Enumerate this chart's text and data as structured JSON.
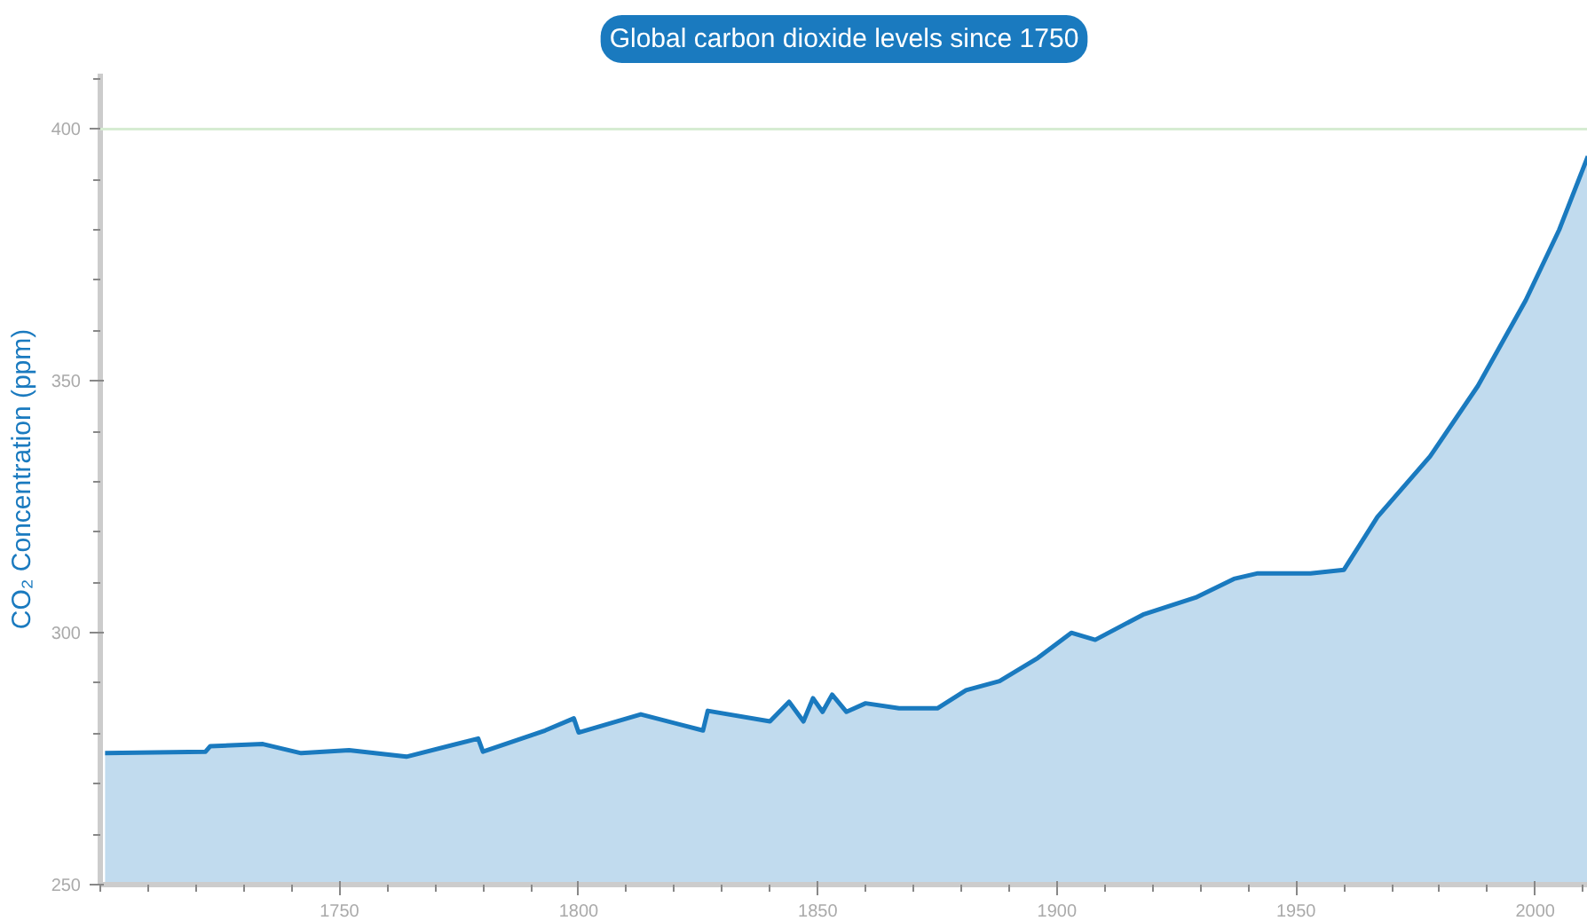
{
  "chart_data": {
    "type": "area",
    "title": "Global carbon dioxide levels since 1750",
    "ylabel": "CO₂ Concentration (ppm)",
    "x": [
      1701,
      1722,
      1723,
      1734,
      1742,
      1752,
      1764,
      1779,
      1780,
      1793,
      1799,
      1800,
      1813,
      1826,
      1827,
      1840,
      1844,
      1847,
      1849,
      1851,
      1853,
      1856,
      1860,
      1867,
      1875,
      1881,
      1888,
      1896,
      1903,
      1908,
      1918,
      1929,
      1937,
      1942,
      1953,
      1960,
      1967,
      1978,
      1988,
      1998,
      2005,
      2011
    ],
    "series": [
      {
        "color": "#1a7abf",
        "values": [
          276.1,
          276.4,
          277.5,
          277.9,
          276.1,
          276.7,
          275.4,
          279,
          276.4,
          280.6,
          283,
          280.2,
          283.8,
          280.6,
          284.5,
          282.4,
          286.3,
          282.4,
          287,
          284.3,
          287.7,
          284.3,
          286,
          285,
          285,
          288.6,
          290.4,
          295,
          300,
          298.6,
          303.6,
          307,
          310.7,
          311.8,
          311.8,
          312.5,
          323,
          335,
          349,
          366,
          380,
          394.6
        ]
      }
    ],
    "xlim": [
      1700,
      2011
    ],
    "ylim": [
      250,
      411
    ],
    "xticks": [
      1750,
      1800,
      1850,
      1900,
      1950,
      2000
    ],
    "yticks": [
      250,
      300,
      350,
      400
    ],
    "ref_lines": [
      {
        "axis": "y",
        "value": 400,
        "color": "#d6ecd2"
      }
    ],
    "grid": false,
    "marker": "none",
    "line_style": "solid"
  }
}
